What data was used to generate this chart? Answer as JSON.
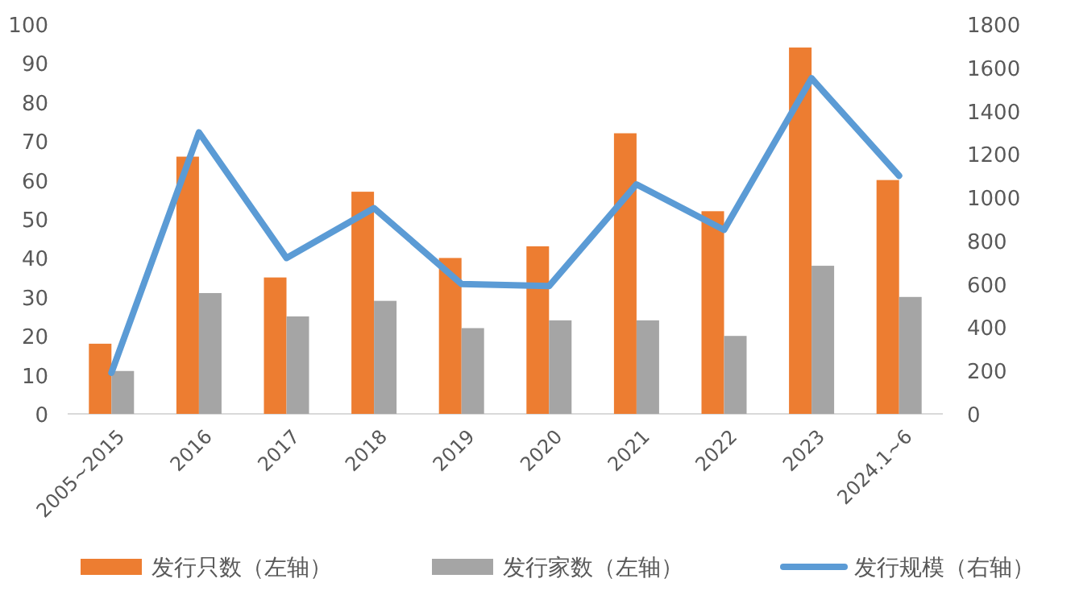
{
  "chart_data": {
    "type": "bar",
    "categories": [
      "2005~2015",
      "2016",
      "2017",
      "2018",
      "2019",
      "2020",
      "2021",
      "2022",
      "2023",
      "2024.1~6"
    ],
    "series": [
      {
        "name": "发行只数（左轴）",
        "color": "#ed7d31",
        "values": [
          18,
          66,
          35,
          57,
          40,
          43,
          72,
          52,
          94,
          60
        ]
      },
      {
        "name": "发行家数（左轴）",
        "color": "#a5a5a5",
        "values": [
          11,
          31,
          25,
          29,
          22,
          24,
          24,
          20,
          38,
          30
        ]
      },
      {
        "name": "发行规模（右轴）",
        "type": "line",
        "axis": "y2",
        "color": "#5b9bd5",
        "values": [
          190,
          1300,
          720,
          950,
          600,
          590,
          1060,
          850,
          1550,
          1100
        ]
      }
    ],
    "ylim": [
      0,
      100
    ],
    "yticks": [
      0,
      10,
      20,
      30,
      40,
      50,
      60,
      70,
      80,
      90,
      100
    ],
    "y2lim": [
      0,
      1800
    ],
    "y2ticks": [
      0,
      200,
      400,
      600,
      800,
      1000,
      1200,
      1400,
      1600,
      1800
    ],
    "legend": "bottom"
  }
}
